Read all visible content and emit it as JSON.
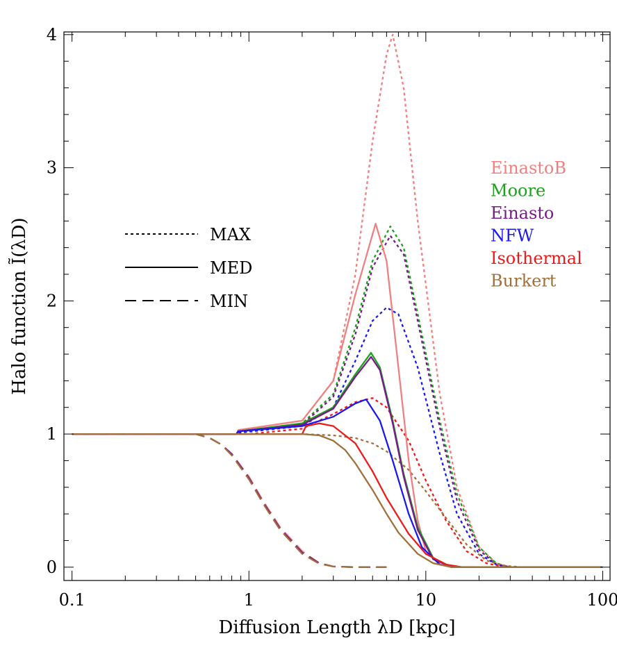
{
  "chart_data": {
    "type": "line",
    "xlabel": "Diffusion Length λD [kpc]",
    "ylabel": "Halo function Ĩ(λD)",
    "xscale": "log",
    "xlim": [
      0.09,
      110
    ],
    "ylim": [
      -0.1,
      4.02
    ],
    "xticks": [
      {
        "value": 0.1,
        "label": "0.1"
      },
      {
        "value": 1,
        "label": "1"
      },
      {
        "value": 10,
        "label": "10"
      },
      {
        "value": 100,
        "label": "100"
      }
    ],
    "yticks": [
      {
        "value": 0,
        "label": "0"
      },
      {
        "value": 1,
        "label": "1"
      },
      {
        "value": 2,
        "label": "2"
      },
      {
        "value": 3,
        "label": "3"
      },
      {
        "value": 4,
        "label": "4"
      }
    ],
    "grid": false,
    "line_styles": [
      {
        "label": "MAX",
        "style": "dotted"
      },
      {
        "label": "MED",
        "style": "solid"
      },
      {
        "label": "MIN",
        "style": "dashed"
      }
    ],
    "models": [
      {
        "name": "EinastoB",
        "color": "#f08080"
      },
      {
        "name": "Moore",
        "color": "#1aa31a"
      },
      {
        "name": "Einasto",
        "color": "#7a1a8a"
      },
      {
        "name": "NFW",
        "color": "#1a1aee"
      },
      {
        "name": "Isothermal",
        "color": "#ee1a1a"
      },
      {
        "name": "Burkert",
        "color": "#a0703a"
      }
    ],
    "series": [
      {
        "model": "EinastoB",
        "set": "MAX",
        "points": [
          [
            0.1,
            1
          ],
          [
            0.85,
            1
          ],
          [
            0.88,
            1.03
          ],
          [
            2,
            1.1
          ],
          [
            3,
            1.4
          ],
          [
            4,
            2.2
          ],
          [
            5,
            3.2
          ],
          [
            6,
            3.85
          ],
          [
            6.5,
            4.0
          ],
          [
            7.5,
            3.6
          ],
          [
            9,
            2.6
          ],
          [
            12,
            1.3
          ],
          [
            15,
            0.6
          ],
          [
            20,
            0.15
          ],
          [
            25,
            0.03
          ],
          [
            30,
            0
          ],
          [
            100,
            0
          ]
        ]
      },
      {
        "model": "Moore",
        "set": "MAX",
        "points": [
          [
            0.1,
            1
          ],
          [
            0.85,
            1
          ],
          [
            0.88,
            1.01
          ],
          [
            2,
            1.08
          ],
          [
            3,
            1.3
          ],
          [
            4,
            1.8
          ],
          [
            5,
            2.3
          ],
          [
            6.3,
            2.56
          ],
          [
            7.5,
            2.4
          ],
          [
            9,
            1.9
          ],
          [
            12,
            1.1
          ],
          [
            15,
            0.55
          ],
          [
            20,
            0.15
          ],
          [
            25,
            0.03
          ],
          [
            30,
            0
          ],
          [
            100,
            0
          ]
        ]
      },
      {
        "model": "Einasto",
        "set": "MAX",
        "points": [
          [
            0.1,
            1
          ],
          [
            0.85,
            1
          ],
          [
            0.88,
            1.01
          ],
          [
            2,
            1.07
          ],
          [
            3,
            1.28
          ],
          [
            4,
            1.75
          ],
          [
            5,
            2.25
          ],
          [
            6.3,
            2.49
          ],
          [
            7.5,
            2.35
          ],
          [
            9,
            1.85
          ],
          [
            12,
            1.05
          ],
          [
            15,
            0.5
          ],
          [
            20,
            0.13
          ],
          [
            25,
            0.02
          ],
          [
            30,
            0
          ],
          [
            100,
            0
          ]
        ]
      },
      {
        "model": "NFW",
        "set": "MAX",
        "points": [
          [
            0.1,
            1
          ],
          [
            0.85,
            1
          ],
          [
            0.88,
            1.01
          ],
          [
            2,
            1.06
          ],
          [
            3,
            1.2
          ],
          [
            4,
            1.55
          ],
          [
            5,
            1.85
          ],
          [
            6,
            1.95
          ],
          [
            7,
            1.9
          ],
          [
            9,
            1.5
          ],
          [
            12,
            0.85
          ],
          [
            15,
            0.4
          ],
          [
            20,
            0.1
          ],
          [
            25,
            0.02
          ],
          [
            30,
            0
          ],
          [
            100,
            0
          ]
        ]
      },
      {
        "model": "Isothermal",
        "set": "MAX",
        "points": [
          [
            0.1,
            1
          ],
          [
            1,
            1
          ],
          [
            2,
            1.04
          ],
          [
            3,
            1.15
          ],
          [
            4,
            1.24
          ],
          [
            5,
            1.27
          ],
          [
            6,
            1.2
          ],
          [
            8,
            0.95
          ],
          [
            10,
            0.65
          ],
          [
            13,
            0.35
          ],
          [
            17,
            0.12
          ],
          [
            22,
            0.03
          ],
          [
            28,
            0
          ],
          [
            100,
            0
          ]
        ]
      },
      {
        "model": "Burkert",
        "set": "MAX",
        "points": [
          [
            0.1,
            1
          ],
          [
            2,
            1
          ],
          [
            3,
            0.99
          ],
          [
            4,
            0.97
          ],
          [
            5,
            0.93
          ],
          [
            6,
            0.87
          ],
          [
            8,
            0.73
          ],
          [
            10,
            0.57
          ],
          [
            13,
            0.37
          ],
          [
            17,
            0.17
          ],
          [
            22,
            0.05
          ],
          [
            28,
            0.01
          ],
          [
            35,
            0
          ],
          [
            100,
            0
          ]
        ]
      },
      {
        "model": "EinastoB",
        "set": "MED",
        "points": [
          [
            0.1,
            1
          ],
          [
            0.85,
            1
          ],
          [
            0.87,
            1.03
          ],
          [
            2,
            1.1
          ],
          [
            3,
            1.4
          ],
          [
            4,
            2.05
          ],
          [
            5.2,
            2.58
          ],
          [
            6,
            2.3
          ],
          [
            7,
            1.5
          ],
          [
            8,
            0.8
          ],
          [
            9,
            0.35
          ],
          [
            10,
            0.12
          ],
          [
            12,
            0.02
          ],
          [
            15,
            0
          ],
          [
            100,
            0
          ]
        ]
      },
      {
        "model": "Moore",
        "set": "MED",
        "points": [
          [
            0.1,
            1
          ],
          [
            0.85,
            1
          ],
          [
            0.87,
            1.02
          ],
          [
            2,
            1.08
          ],
          [
            3,
            1.2
          ],
          [
            4,
            1.45
          ],
          [
            4.9,
            1.61
          ],
          [
            5.5,
            1.5
          ],
          [
            6.5,
            1.1
          ],
          [
            7.5,
            0.7
          ],
          [
            9,
            0.3
          ],
          [
            11,
            0.07
          ],
          [
            14,
            0
          ],
          [
            100,
            0
          ]
        ]
      },
      {
        "model": "Einasto",
        "set": "MED",
        "points": [
          [
            0.1,
            1
          ],
          [
            0.85,
            1
          ],
          [
            0.87,
            1.02
          ],
          [
            2,
            1.07
          ],
          [
            3,
            1.19
          ],
          [
            4,
            1.43
          ],
          [
            4.9,
            1.58
          ],
          [
            5.5,
            1.48
          ],
          [
            6.5,
            1.08
          ],
          [
            7.5,
            0.68
          ],
          [
            9,
            0.28
          ],
          [
            11,
            0.06
          ],
          [
            14,
            0
          ],
          [
            100,
            0
          ]
        ]
      },
      {
        "model": "NFW",
        "set": "MED",
        "points": [
          [
            0.1,
            1
          ],
          [
            0.85,
            1
          ],
          [
            0.87,
            1.02
          ],
          [
            2,
            1.06
          ],
          [
            3,
            1.13
          ],
          [
            4,
            1.23
          ],
          [
            4.6,
            1.26
          ],
          [
            5.5,
            1.1
          ],
          [
            6.5,
            0.8
          ],
          [
            8,
            0.4
          ],
          [
            9.5,
            0.15
          ],
          [
            12,
            0.02
          ],
          [
            14,
            0
          ],
          [
            100,
            0
          ]
        ]
      },
      {
        "model": "Isothermal",
        "set": "MED",
        "points": [
          [
            0.1,
            1
          ],
          [
            2,
            1
          ],
          [
            2.1,
            1.06
          ],
          [
            2.5,
            1.08
          ],
          [
            3,
            1.06
          ],
          [
            4,
            0.93
          ],
          [
            5,
            0.72
          ],
          [
            6,
            0.52
          ],
          [
            8,
            0.25
          ],
          [
            10,
            0.1
          ],
          [
            13,
            0.02
          ],
          [
            16,
            0
          ],
          [
            100,
            0
          ]
        ]
      },
      {
        "model": "Burkert",
        "set": "MED",
        "points": [
          [
            0.1,
            1
          ],
          [
            2,
            1
          ],
          [
            2.5,
            0.99
          ],
          [
            3,
            0.95
          ],
          [
            3.5,
            0.88
          ],
          [
            4,
            0.78
          ],
          [
            5,
            0.58
          ],
          [
            6,
            0.4
          ],
          [
            7,
            0.26
          ],
          [
            9,
            0.1
          ],
          [
            11,
            0.03
          ],
          [
            14,
            0
          ],
          [
            100,
            0
          ]
        ]
      },
      {
        "model": "EinastoB",
        "set": "MIN",
        "points": [
          [
            0.1,
            1
          ],
          [
            0.5,
            1
          ],
          [
            0.6,
            0.97
          ],
          [
            0.7,
            0.92
          ],
          [
            0.8,
            0.85
          ],
          [
            1,
            0.68
          ],
          [
            1.2,
            0.5
          ],
          [
            1.5,
            0.3
          ],
          [
            2,
            0.12
          ],
          [
            2.5,
            0.03
          ],
          [
            3,
            0.005
          ],
          [
            4,
            0
          ],
          [
            6,
            0
          ]
        ]
      },
      {
        "model": "Einasto",
        "set": "MIN",
        "points": [
          [
            0.1,
            1
          ],
          [
            0.5,
            1
          ],
          [
            0.6,
            0.97
          ],
          [
            0.7,
            0.92
          ],
          [
            0.8,
            0.85
          ],
          [
            1,
            0.67
          ],
          [
            1.2,
            0.49
          ],
          [
            1.5,
            0.29
          ],
          [
            2,
            0.11
          ],
          [
            2.5,
            0.03
          ],
          [
            3,
            0.005
          ],
          [
            4,
            0
          ],
          [
            6,
            0
          ]
        ]
      },
      {
        "model": "Burkert",
        "set": "MIN",
        "points": [
          [
            0.1,
            1
          ],
          [
            0.5,
            1
          ],
          [
            0.6,
            0.97
          ],
          [
            0.7,
            0.92
          ],
          [
            0.8,
            0.84
          ],
          [
            1,
            0.66
          ],
          [
            1.2,
            0.48
          ],
          [
            1.5,
            0.28
          ],
          [
            2,
            0.1
          ],
          [
            2.5,
            0.025
          ],
          [
            3,
            0.005
          ],
          [
            4,
            0
          ],
          [
            6,
            0
          ]
        ]
      }
    ]
  }
}
